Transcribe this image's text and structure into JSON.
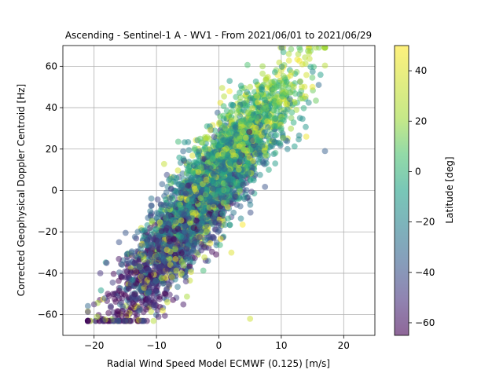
{
  "chart_data": {
    "type": "scatter",
    "title": "Ascending - Sentinel-1 A - WV1 - From 2021/06/01 to 2021/06/29",
    "xlabel": "Radial Wind Speed Model ECMWF (0.125) [m/s]",
    "ylabel": "Corrected Geophysical Doppler Centroid [Hz]",
    "xlim": [
      -25,
      25
    ],
    "ylim": [
      -70,
      70
    ],
    "xticks": [
      -20,
      -10,
      0,
      10,
      20
    ],
    "yticks": [
      -60,
      -40,
      -20,
      0,
      20,
      40,
      60
    ],
    "grid": true,
    "colorbar": {
      "label": "Latitude [deg]",
      "range": [
        -65,
        50
      ],
      "ticks": [
        -60,
        -40,
        -20,
        0,
        20,
        40
      ],
      "colormap": "viridis"
    },
    "marker_alpha": 0.5,
    "point_cloud": {
      "approx_count": 4000,
      "relation": "y ≈ 3.8·x + 6, spread ≈ ±12 Hz",
      "x_range": [
        -21,
        17
      ],
      "y_range": [
        -63,
        69
      ],
      "color_trend": "low latitude (purple) at negative x/y, higher latitude (green/yellow) at positive x/y"
    },
    "sample_points": [
      {
        "x": -20,
        "y": -55,
        "lat": -55
      },
      {
        "x": -19,
        "y": -40,
        "lat": -50
      },
      {
        "x": -18,
        "y": -35,
        "lat": -45
      },
      {
        "x": -17,
        "y": -50,
        "lat": -58
      },
      {
        "x": -16,
        "y": -25,
        "lat": -40
      },
      {
        "x": -15,
        "y": -42,
        "lat": -52
      },
      {
        "x": -14,
        "y": -30,
        "lat": -35
      },
      {
        "x": -13,
        "y": -20,
        "lat": -30
      },
      {
        "x": -12,
        "y": -45,
        "lat": -48
      },
      {
        "x": -12,
        "y": -63,
        "lat": -40
      },
      {
        "x": -11,
        "y": -10,
        "lat": -25
      },
      {
        "x": -10,
        "y": -32,
        "lat": -45
      },
      {
        "x": -9,
        "y": -58,
        "lat": 45
      },
      {
        "x": -8,
        "y": 5,
        "lat": -20
      },
      {
        "x": -7,
        "y": -15,
        "lat": -30
      },
      {
        "x": -6,
        "y": -40,
        "lat": 30
      },
      {
        "x": -5,
        "y": 10,
        "lat": 0
      },
      {
        "x": -4,
        "y": -5,
        "lat": -15
      },
      {
        "x": -3,
        "y": 25,
        "lat": 10
      },
      {
        "x": -2,
        "y": -20,
        "lat": 20
      },
      {
        "x": -1,
        "y": 15,
        "lat": 5
      },
      {
        "x": 0,
        "y": 0,
        "lat": -10
      },
      {
        "x": 1,
        "y": 30,
        "lat": 15
      },
      {
        "x": 2,
        "y": -30,
        "lat": 40
      },
      {
        "x": 3,
        "y": 40,
        "lat": 20
      },
      {
        "x": 4,
        "y": 20,
        "lat": 10
      },
      {
        "x": 5,
        "y": 50,
        "lat": 25
      },
      {
        "x": 5,
        "y": -62,
        "lat": 35
      },
      {
        "x": 6,
        "y": 35,
        "lat": 5
      },
      {
        "x": 7,
        "y": 60,
        "lat": 20
      },
      {
        "x": 8,
        "y": 10,
        "lat": -5
      },
      {
        "x": 9,
        "y": 45,
        "lat": 15
      },
      {
        "x": 10,
        "y": 30,
        "lat": 0
      },
      {
        "x": 11,
        "y": 20,
        "lat": -20
      },
      {
        "x": 12,
        "y": 50,
        "lat": 30
      },
      {
        "x": 13,
        "y": 35,
        "lat": -15
      },
      {
        "x": 14,
        "y": 26,
        "lat": 45
      },
      {
        "x": 15,
        "y": 50,
        "lat": 45
      },
      {
        "x": 16,
        "y": 51,
        "lat": -30
      },
      {
        "x": 17,
        "y": 19,
        "lat": -35
      }
    ]
  }
}
